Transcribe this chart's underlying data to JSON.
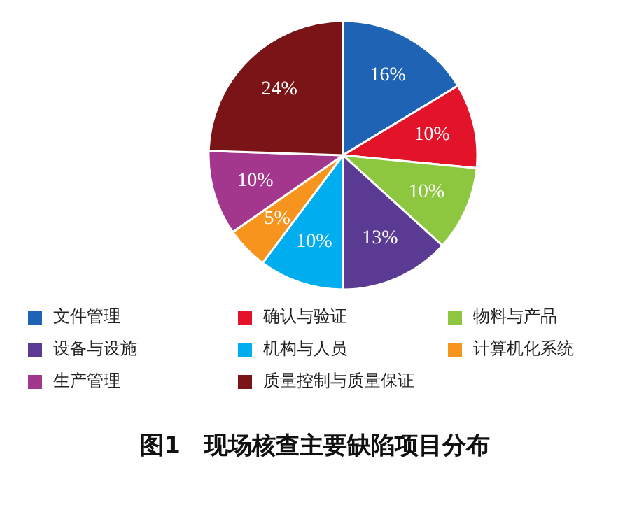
{
  "chart_data": {
    "type": "pie",
    "title": "图1　现场核查主要缺陷项目分布",
    "categories": [
      "文件管理",
      "确认与验证",
      "物料与产品",
      "设备与设施",
      "机构与人员",
      "计算机化系统",
      "生产管理",
      "质量控制与质量保证"
    ],
    "values": [
      16,
      10,
      10,
      13,
      10,
      5,
      10,
      24
    ],
    "value_labels": [
      "16%",
      "10%",
      "10%",
      "13%",
      "10%",
      "5%",
      "10%",
      "24%"
    ],
    "colors": [
      "#1f64b4",
      "#e3142a",
      "#8dc63f",
      "#5b3a93",
      "#00aeef",
      "#f7941d",
      "#a3378e",
      "#7a1416"
    ],
    "legend": "bottom"
  }
}
